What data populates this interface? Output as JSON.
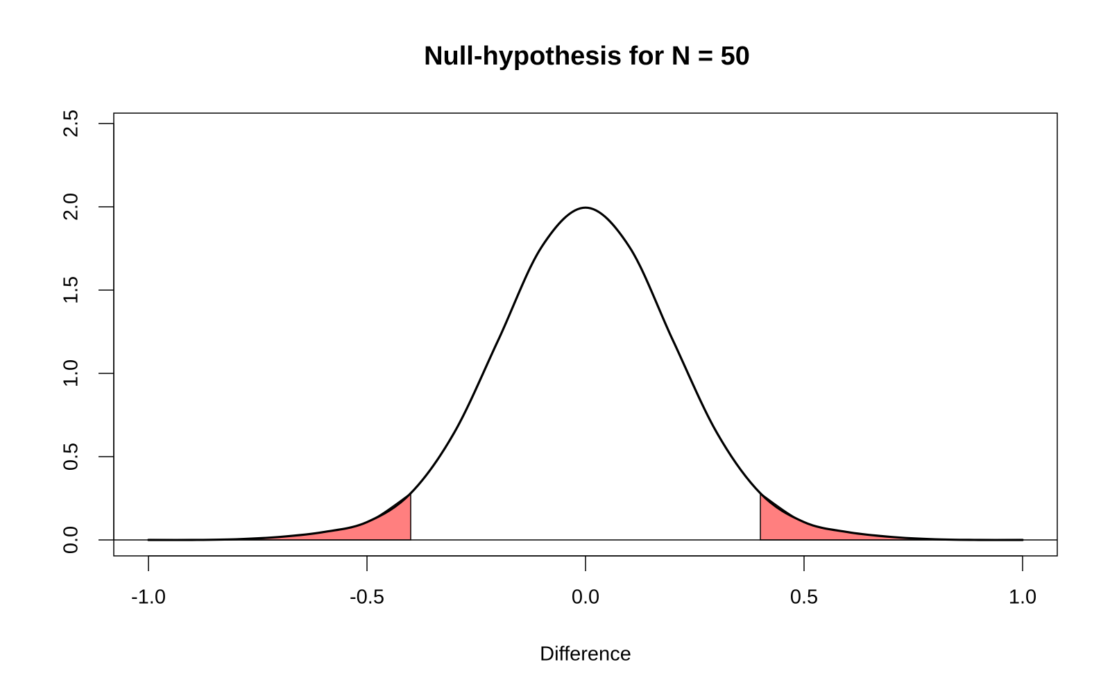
{
  "chart_data": {
    "type": "area",
    "title": "Null-hypothesis for N =  50",
    "xlabel": "Difference",
    "ylabel": "",
    "xlim": [
      -1.0,
      1.0
    ],
    "ylim": [
      0.0,
      2.5
    ],
    "x_ticks": [
      -1.0,
      -0.5,
      0.0,
      0.5,
      1.0
    ],
    "x_tick_labels": [
      "-1.0",
      "-0.5",
      "0.0",
      "0.5",
      "1.0"
    ],
    "y_ticks": [
      0.0,
      0.5,
      1.0,
      1.5,
      2.0,
      2.5
    ],
    "y_tick_labels": [
      "0.0",
      "0.5",
      "1.0",
      "1.5",
      "2.0",
      "2.5"
    ],
    "grid": false,
    "legend": "none",
    "series": [
      {
        "kind": "curve",
        "x": [
          -1.0,
          -0.9,
          -0.8,
          -0.7,
          -0.6,
          -0.5,
          -0.4,
          -0.3,
          -0.2,
          -0.1,
          0.0,
          0.1,
          0.2,
          0.3,
          0.4,
          0.5,
          0.6,
          0.7,
          0.8,
          0.9,
          1.0
        ],
        "y": [
          0.0,
          0.0,
          0.004,
          0.018,
          0.047,
          0.107,
          0.28,
          0.646,
          1.198,
          1.761,
          1.995,
          1.761,
          1.198,
          0.646,
          0.28,
          0.107,
          0.047,
          0.018,
          0.004,
          0.0,
          0.0
        ],
        "color": "#000000"
      },
      {
        "kind": "shaded-tail",
        "x": [
          -1.0,
          -0.9,
          -0.8,
          -0.7,
          -0.6,
          -0.5,
          -0.4
        ],
        "y": [
          0.0,
          0.0,
          0.004,
          0.018,
          0.047,
          0.107,
          0.28
        ],
        "color": "#ff7f7f"
      },
      {
        "kind": "shaded-tail",
        "x": [
          0.4,
          0.5,
          0.6,
          0.7,
          0.8,
          0.9,
          1.0
        ],
        "y": [
          0.28,
          0.107,
          0.047,
          0.018,
          0.004,
          0.0,
          0.0
        ],
        "color": "#ff7f7f"
      }
    ],
    "reference_lines": [
      {
        "orientation": "horizontal",
        "y": 0.0,
        "color": "#000000"
      }
    ],
    "colors": {
      "curve": "#000000",
      "shade": "#ff7f7f",
      "axis": "#000000",
      "background": "#ffffff"
    }
  }
}
